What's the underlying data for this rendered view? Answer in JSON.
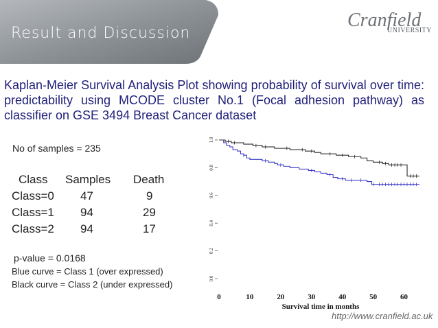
{
  "header": {
    "title": "Result and Discussion"
  },
  "logo": {
    "name": "Cranfield",
    "sub": "UNIVERSITY"
  },
  "subtitle": "Kaplan-Meier Survival Analysis Plot showing probability of survival over time: predictability using  MCODE cluster No.1 (Focal adhesion pathway) as classifier on GSE 3494 Breast Cancer dataset",
  "info": {
    "samples_text": "No of samples = 235",
    "table": {
      "headers": [
        "Class",
        "Samples",
        "Death"
      ],
      "rows": [
        [
          "Class=0",
          "47",
          "9"
        ],
        [
          "Class=1",
          "94",
          "29"
        ],
        [
          "Class=2",
          "94",
          "17"
        ]
      ]
    },
    "pvalue": "p-value = 0.0168",
    "legend_blue": "Blue curve = Class 1 (over expressed)",
    "legend_black": "Black curve = Class 2 (under expressed)"
  },
  "footer": {
    "url": "http://www.cranfield.ac.uk"
  },
  "colors": {
    "blue_curve": "#3a3ac8",
    "black_curve": "#2a2a2a",
    "subtitle": "#1f1f7a",
    "header_bg": "#8c9196"
  },
  "chart_data": {
    "type": "line",
    "title": "",
    "xlabel": "Survival time in months",
    "ylabel": "",
    "xlim": [
      0,
      65
    ],
    "ylim": [
      0,
      1.0
    ],
    "xticks": [
      0,
      10,
      20,
      30,
      40,
      50,
      60
    ],
    "yticks": [
      "0.0",
      "0.2",
      "0.4",
      "0.6",
      "0.8",
      "1.0"
    ],
    "series": [
      {
        "name": "Class 1 (over expressed)",
        "color": "blue",
        "x": [
          0,
          1.5,
          2.5,
          3.5,
          4.5,
          6,
          7,
          8,
          9,
          10,
          12,
          14,
          16,
          18,
          19,
          21,
          23,
          26,
          29,
          31,
          33,
          35,
          37,
          38.5,
          41,
          45,
          48,
          49.5,
          65
        ],
        "y": [
          1.0,
          0.98,
          0.96,
          0.95,
          0.93,
          0.92,
          0.9,
          0.89,
          0.87,
          0.86,
          0.86,
          0.85,
          0.84,
          0.83,
          0.82,
          0.81,
          0.8,
          0.79,
          0.78,
          0.77,
          0.76,
          0.75,
          0.73,
          0.72,
          0.71,
          0.71,
          0.7,
          0.68,
          0.68
        ],
        "censor_x": [
          8,
          15,
          20,
          30,
          36,
          40,
          43,
          46,
          50,
          52,
          53,
          54,
          55,
          56,
          57,
          58,
          59,
          60,
          61,
          62,
          63,
          64
        ]
      },
      {
        "name": "Class 2 (under expressed)",
        "color": "black",
        "x": [
          0,
          2,
          4,
          8,
          11,
          14,
          18,
          23,
          28,
          31,
          33,
          38,
          42,
          46,
          48,
          50,
          53,
          55,
          60,
          61,
          65
        ],
        "y": [
          1.0,
          0.99,
          0.98,
          0.97,
          0.96,
          0.95,
          0.94,
          0.93,
          0.92,
          0.91,
          0.9,
          0.89,
          0.88,
          0.87,
          0.85,
          0.84,
          0.83,
          0.82,
          0.82,
          0.74,
          0.74
        ],
        "censor_x": [
          3,
          5,
          12,
          15,
          22,
          27,
          30,
          36,
          40,
          44,
          52,
          54,
          56,
          57,
          58,
          59,
          62,
          63,
          64
        ]
      }
    ]
  }
}
